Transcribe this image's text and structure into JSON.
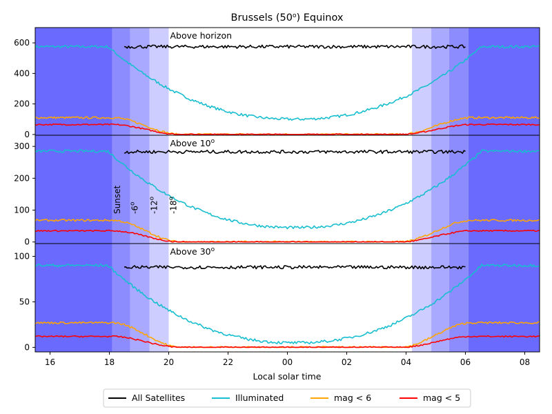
{
  "chart_data": {
    "type": "line",
    "title": "Brussels (50°) Equinox",
    "title_sup": "o",
    "title_parts": [
      "Brussels (50",
      ") Equinox"
    ],
    "xlabel": "Local solar time",
    "x_ticks": [
      "16",
      "18",
      "20",
      "22",
      "00",
      "02",
      "04",
      "06",
      "08"
    ],
    "x_tick_hours": [
      16,
      18,
      20,
      22,
      24,
      26,
      28,
      30,
      32
    ],
    "xlim": [
      15.5,
      32.5
    ],
    "twilight": {
      "sunset": 18.1,
      "civil_dusk": 18.7,
      "nautical_dusk": 19.35,
      "astronomical_dusk": 20.0,
      "astronomical_dawn": 28.2,
      "nautical_dawn": 28.85,
      "civil_dawn": 29.45,
      "sunrise": 30.1,
      "band_labels": [
        "Sunset",
        "-6",
        "-12",
        "-18"
      ],
      "band_label_sup": "o"
    },
    "legend": {
      "placement": "bottom-center",
      "entries": [
        {
          "label": "All Satellites",
          "color": "#000000"
        },
        {
          "label": "Illuminated",
          "color": "#17becf"
        },
        {
          "label": "mag < 6",
          "color": "#ffa500"
        },
        {
          "label": "mag < 5",
          "color": "#ff0000"
        }
      ]
    },
    "panels": [
      {
        "label": "Above horizon",
        "label_sup": "",
        "ylim": [
          -5,
          700
        ],
        "y_ticks": [
          0,
          200,
          400,
          600
        ],
        "series": {
          "all": 575,
          "illum_day": 575,
          "illum_night": 100,
          "mag6_day": 110,
          "mag6_night": 0,
          "mag5_day": 65,
          "mag5_night": 0
        }
      },
      {
        "label": "Above 10",
        "label_sup": "o",
        "ylim": [
          -5,
          335
        ],
        "y_ticks": [
          0,
          100,
          200,
          300
        ],
        "series": {
          "all": 283,
          "illum_day": 285,
          "illum_night": 45,
          "mag6_day": 68,
          "mag6_night": 0,
          "mag5_day": 35,
          "mag5_night": 0
        }
      },
      {
        "label": "Above 30",
        "label_sup": "o",
        "ylim": [
          -5,
          114
        ],
        "y_ticks": [
          0,
          50,
          100
        ],
        "series": {
          "all": 88,
          "illum_day": 90,
          "illum_night": 5,
          "mag6_day": 27,
          "mag6_night": 0,
          "mag5_day": 12,
          "mag5_night": 0
        }
      }
    ],
    "colors": {
      "night": "#6a6aff",
      "astro": "#8c8cff",
      "nautical": "#a9a9ff",
      "civil": "#cdcdff"
    }
  }
}
